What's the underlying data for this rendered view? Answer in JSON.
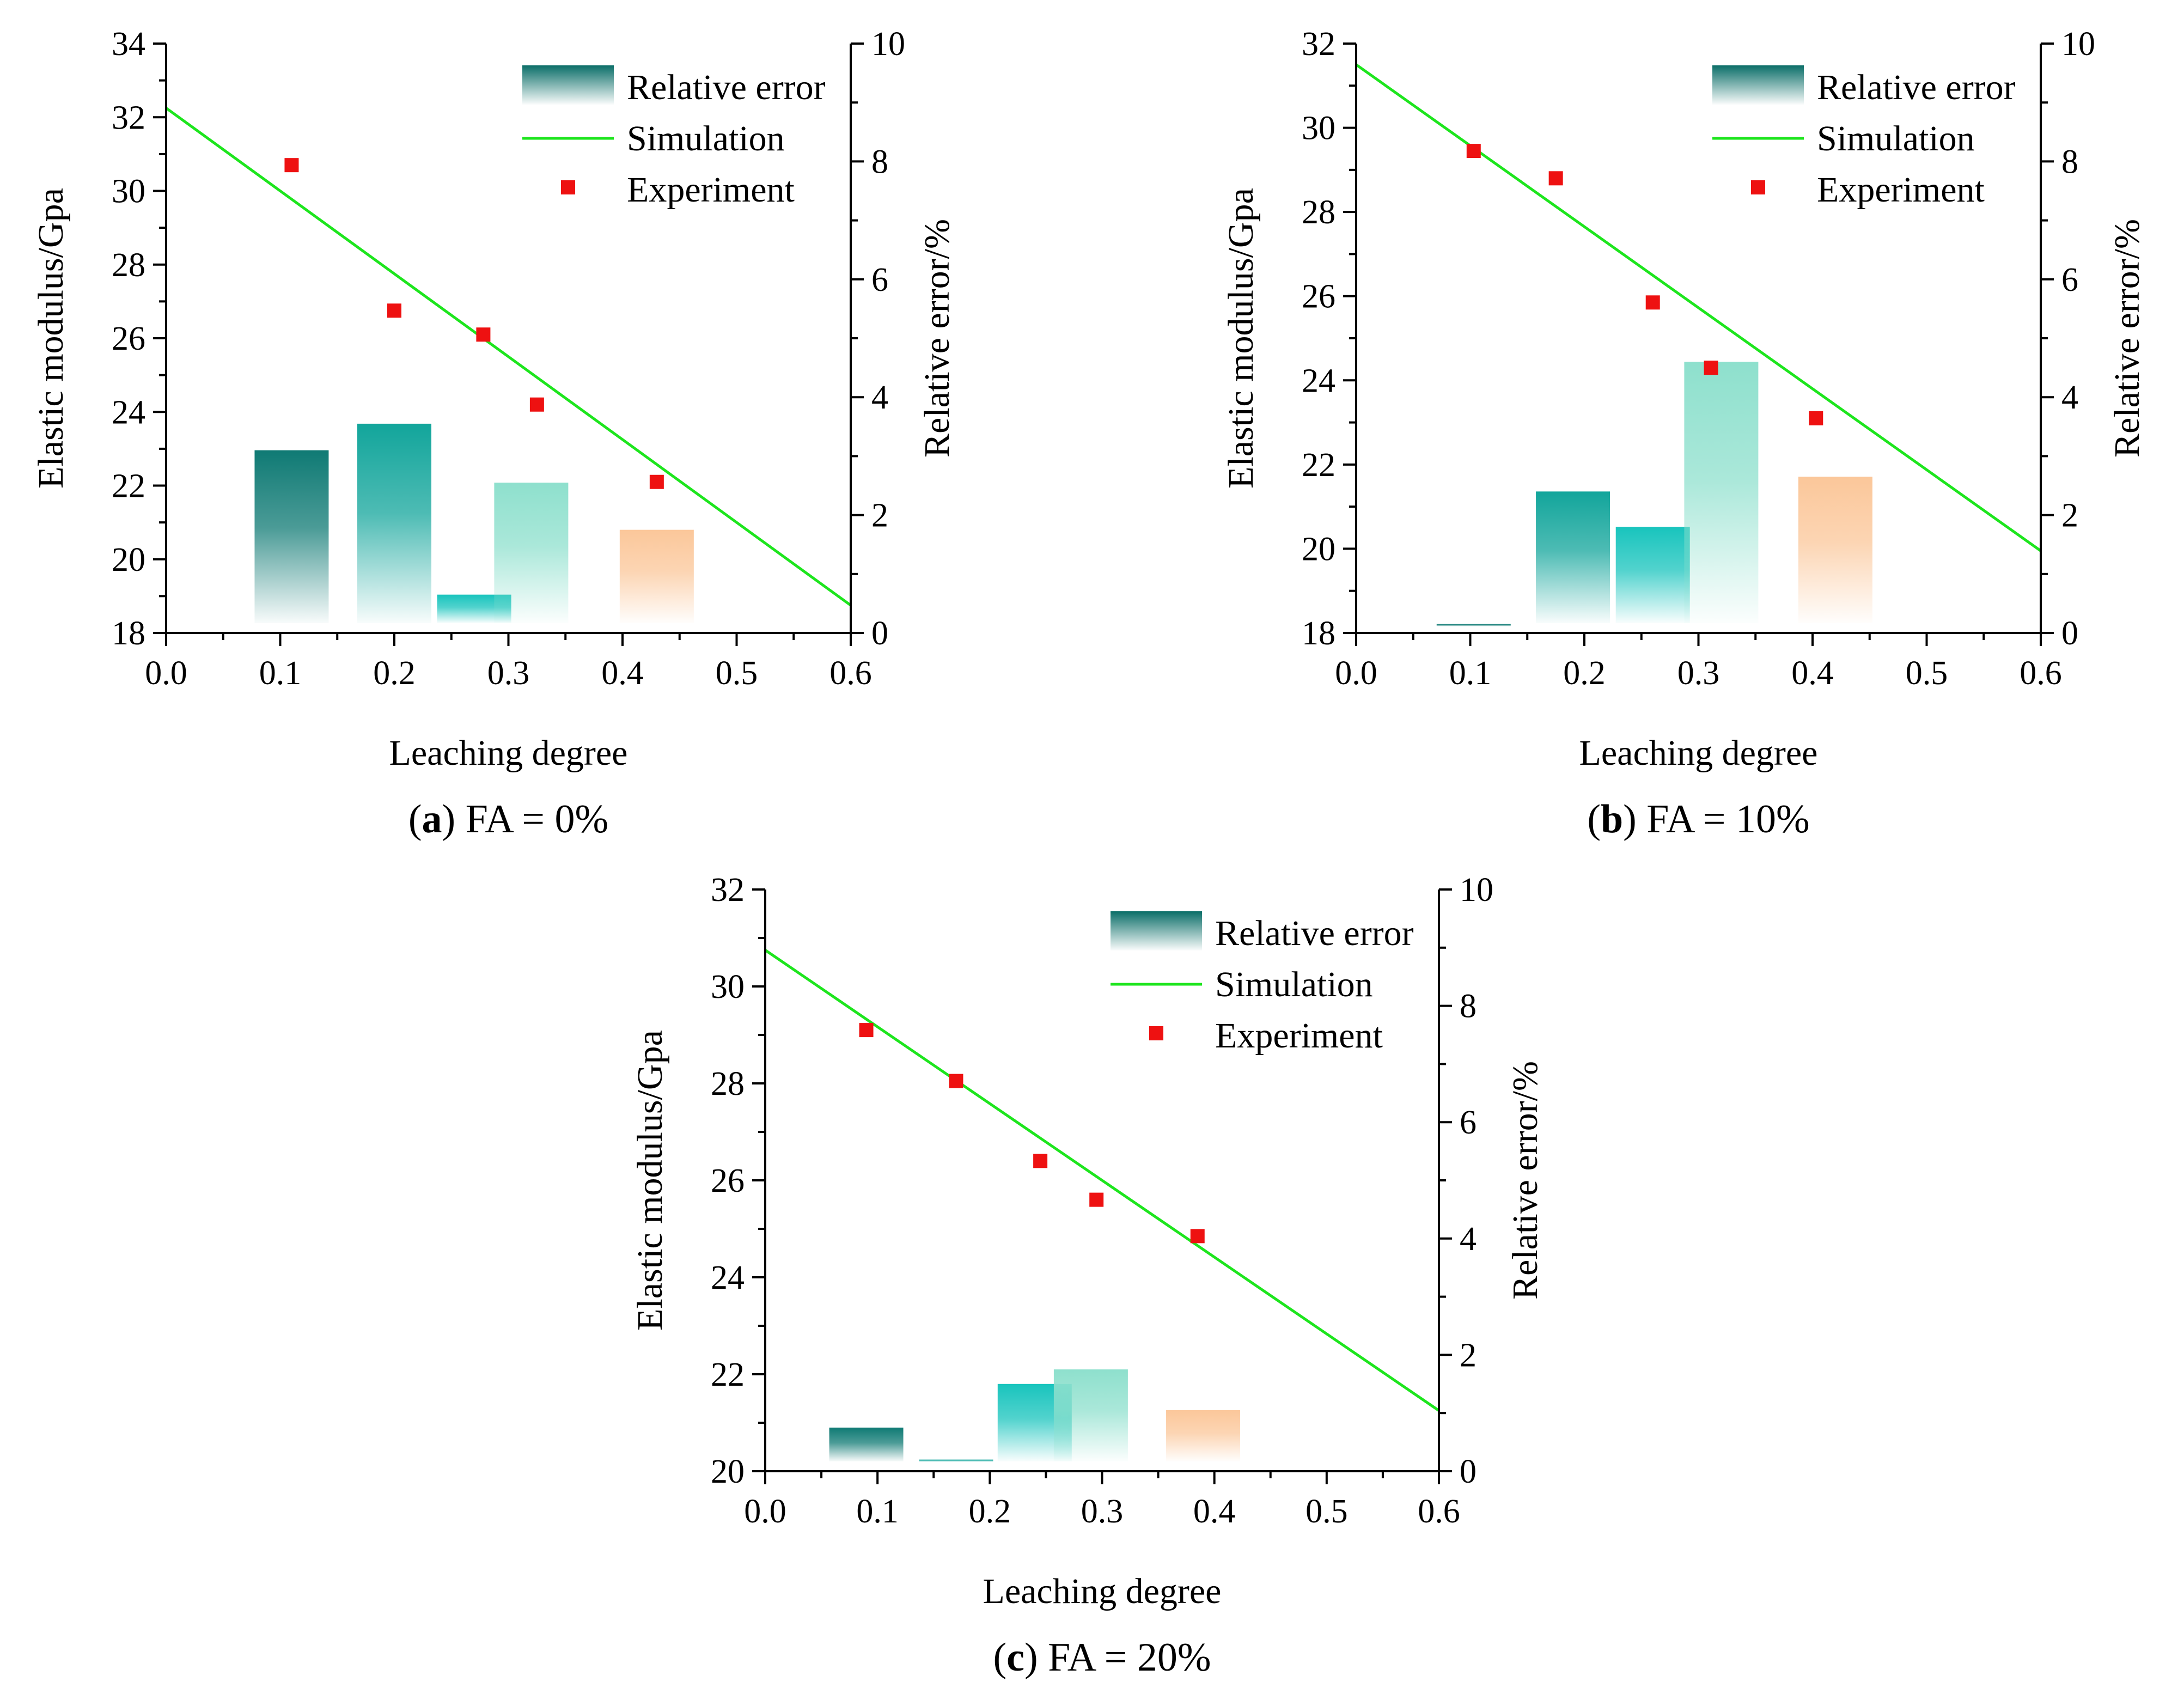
{
  "figure": {
    "panels": [
      {
        "id": "a",
        "caption_letter": "a",
        "caption_text": " FA = 0%",
        "chart_data": {
          "type": "bar+line+scatter",
          "xlabel": "Leaching degree",
          "ylabel_left": "Elastic modulus/Gpa",
          "ylabel_right": "Relative error/%",
          "xlim": [
            0.0,
            0.6
          ],
          "xticks": [
            "0.0",
            "0.1",
            "0.2",
            "0.3",
            "0.4",
            "0.5",
            "0.6"
          ],
          "ylim_left": [
            18,
            34
          ],
          "yticks_left": [
            "18",
            "20",
            "22",
            "24",
            "26",
            "28",
            "30",
            "32",
            "34"
          ],
          "ylim_right": [
            0,
            10
          ],
          "yticks_right": [
            "0",
            "2",
            "4",
            "6",
            "8",
            "10"
          ],
          "legend": [
            "Relative error",
            "Simulation",
            "Experiment"
          ],
          "simulation_line": {
            "x": [
              0.0,
              0.6
            ],
            "y": [
              32.25,
              18.75
            ]
          },
          "experiment": {
            "x": [
              0.11,
              0.2,
              0.278,
              0.325,
              0.43
            ],
            "y": [
              30.7,
              26.75,
              26.1,
              24.2,
              22.1
            ]
          },
          "relative_error_bars": {
            "x": [
              0.11,
              0.2,
              0.27,
              0.32,
              0.43
            ],
            "values": [
              3.1,
              3.55,
              0.65,
              2.55,
              1.75
            ],
            "colors": [
              "#0f7a74",
              "#12a59b",
              "#18c4bd",
              "#8ee0cd",
              "#fbc79a"
            ]
          }
        }
      },
      {
        "id": "b",
        "caption_letter": "b",
        "caption_text": " FA = 10%",
        "chart_data": {
          "type": "bar+line+scatter",
          "xlabel": "Leaching degree",
          "ylabel_left": "Elastic modulus/Gpa",
          "ylabel_right": "Relative error/%",
          "xlim": [
            0.0,
            0.6
          ],
          "xticks": [
            "0.0",
            "0.1",
            "0.2",
            "0.3",
            "0.4",
            "0.5",
            "0.6"
          ],
          "ylim_left": [
            18,
            32
          ],
          "yticks_left": [
            "18",
            "20",
            "22",
            "24",
            "26",
            "28",
            "30",
            "32"
          ],
          "ylim_right": [
            0,
            10
          ],
          "yticks_right": [
            "0",
            "2",
            "4",
            "6",
            "8",
            "10"
          ],
          "legend": [
            "Relative error",
            "Simulation",
            "Experiment"
          ],
          "simulation_line": {
            "x": [
              0.0,
              0.6
            ],
            "y": [
              31.5,
              19.95
            ]
          },
          "experiment": {
            "x": [
              0.103,
              0.175,
              0.26,
              0.311,
              0.403
            ],
            "y": [
              29.45,
              28.8,
              25.85,
              24.3,
              23.1
            ]
          },
          "relative_error_bars": {
            "x": [
              0.103,
              0.19,
              0.26,
              0.32,
              0.42
            ],
            "values": [
              0.15,
              2.4,
              1.8,
              4.6,
              2.65
            ],
            "colors": [
              "#0f7a74",
              "#12a59b",
              "#18c4bd",
              "#8ee0cd",
              "#fbc79a"
            ]
          }
        }
      },
      {
        "id": "c",
        "caption_letter": "c",
        "caption_text": " FA = 20%",
        "chart_data": {
          "type": "bar+line+scatter",
          "xlabel": "Leaching degree",
          "ylabel_left": "Elastic modulus/Gpa",
          "ylabel_right": "Relative error/%",
          "xlim": [
            0.0,
            0.6
          ],
          "xticks": [
            "0.0",
            "0.1",
            "0.2",
            "0.3",
            "0.4",
            "0.5",
            "0.6"
          ],
          "ylim_left": [
            20,
            32
          ],
          "yticks_left": [
            "20",
            "22",
            "24",
            "26",
            "28",
            "30",
            "32"
          ],
          "ylim_right": [
            0,
            10
          ],
          "yticks_right": [
            "0",
            "2",
            "4",
            "6",
            "8",
            "10"
          ],
          "legend": [
            "Relative error",
            "Simulation",
            "Experiment"
          ],
          "simulation_line": {
            "x": [
              0.0,
              0.6
            ],
            "y": [
              30.75,
              21.25
            ]
          },
          "experiment": {
            "x": [
              0.09,
              0.17,
              0.245,
              0.295,
              0.385
            ],
            "y": [
              29.1,
              28.05,
              26.4,
              25.6,
              24.85
            ]
          },
          "relative_error_bars": {
            "x": [
              0.09,
              0.17,
              0.24,
              0.29,
              0.39
            ],
            "values": [
              0.75,
              0.2,
              1.5,
              1.75,
              1.05
            ],
            "colors": [
              "#0f7a74",
              "#12a59b",
              "#18c4bd",
              "#8ee0cd",
              "#fbc79a"
            ]
          }
        }
      }
    ]
  }
}
